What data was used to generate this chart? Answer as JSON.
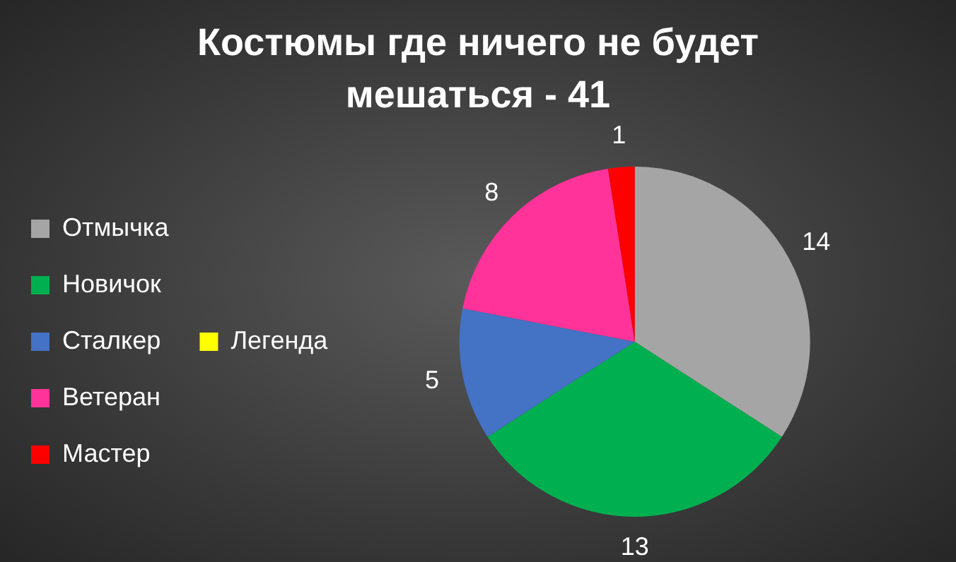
{
  "chart_data": {
    "type": "pie",
    "title": "Костюмы где ничего не будет мешаться - 41",
    "categories": [
      "Отмычка",
      "Новичок",
      "Сталкер",
      "Ветеран",
      "Мастер",
      "Легенда"
    ],
    "values": [
      14,
      13,
      5,
      8,
      1,
      0
    ],
    "colors": [
      "#a5a5a5",
      "#00b050",
      "#4472c4",
      "#ff3399",
      "#ff0000",
      "#ffff00"
    ],
    "value_labels": [
      "14",
      "13",
      "5",
      "8",
      "1",
      null
    ],
    "legend": "left"
  }
}
